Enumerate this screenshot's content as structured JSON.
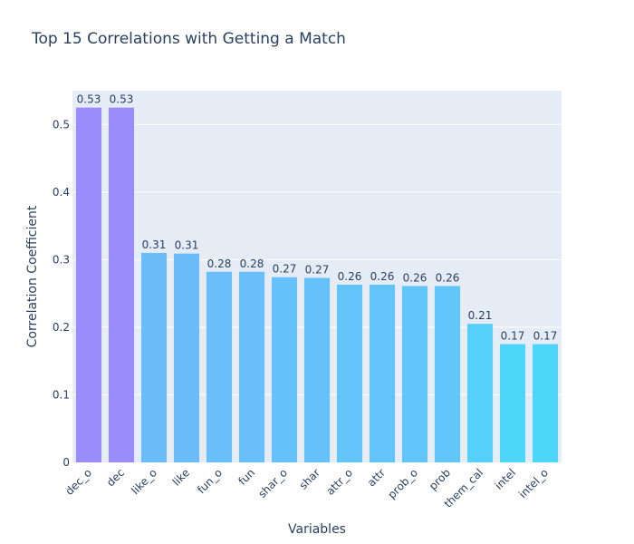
{
  "chart_data": {
    "type": "bar",
    "title": "Top 15 Correlations with Getting a Match",
    "xlabel": "Variables",
    "ylabel": "Correlation Coefficient",
    "categories": [
      "dec_o",
      "dec",
      "like_o",
      "like",
      "fun_o",
      "fun",
      "shar_o",
      "shar",
      "attr_o",
      "attr",
      "prob_o",
      "prob",
      "them_cal",
      "intel",
      "intel_o"
    ],
    "values": [
      0.525,
      0.525,
      0.31,
      0.309,
      0.282,
      0.282,
      0.274,
      0.273,
      0.263,
      0.263,
      0.261,
      0.261,
      0.205,
      0.175,
      0.175
    ],
    "data_labels": [
      "0.53",
      "0.53",
      "0.31",
      "0.31",
      "0.28",
      "0.28",
      "0.27",
      "0.27",
      "0.26",
      "0.26",
      "0.26",
      "0.26",
      "0.21",
      "0.17",
      "0.17"
    ],
    "colors": [
      "#9b8cfb",
      "#9b8cfb",
      "#6bbdfa",
      "#6bbdfa",
      "#69bffa",
      "#69bffa",
      "#66c1fa",
      "#66c1fa",
      "#63c4fa",
      "#63c4fa",
      "#62c5fa",
      "#62c5fa",
      "#55d0fa",
      "#4ed5fa",
      "#4ed5fa"
    ],
    "ylim": [
      0,
      0.55
    ],
    "yticks": [
      0,
      0.1,
      0.2,
      0.3,
      0.4,
      0.5
    ],
    "ytick_labels": [
      "0",
      "0.1",
      "0.2",
      "0.3",
      "0.4",
      "0.5"
    ],
    "grid": true,
    "plot_bgcolor": "#e5ecf6",
    "legend": "none"
  }
}
